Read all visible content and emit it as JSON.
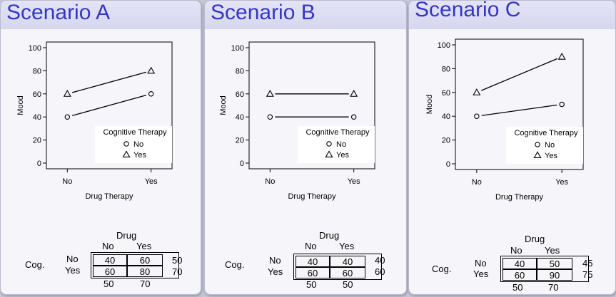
{
  "colors": {
    "title": "#3436c4",
    "header": "#dcdcf2",
    "panel": "#f6f6fa"
  },
  "panels": [
    {
      "title": "Scenario A",
      "chart_data": {
        "type": "line",
        "categories": [
          "No",
          "Yes"
        ],
        "xlabel": "Drug Therapy",
        "ylabel": "Mood",
        "ylim": [
          0,
          100
        ],
        "yticks": [
          0,
          20,
          40,
          60,
          80,
          100
        ],
        "legend_title": "Cognitive Therapy",
        "series": [
          {
            "name": "No",
            "marker": "circle",
            "values": [
              40,
              60
            ]
          },
          {
            "name": "Yes",
            "marker": "triangle",
            "values": [
              60,
              80
            ]
          }
        ]
      },
      "table": {
        "col_header": "Drug",
        "col_labels": [
          "No",
          "Yes"
        ],
        "row_header": "Cog.",
        "row_labels": [
          "No",
          "Yes"
        ],
        "cells": [
          [
            "40",
            "60"
          ],
          [
            "60",
            "80"
          ]
        ],
        "row_means": [
          "50",
          "70"
        ],
        "col_means": [
          "50",
          "70"
        ]
      }
    },
    {
      "title": "Scenario B",
      "chart_data": {
        "type": "line",
        "categories": [
          "No",
          "Yes"
        ],
        "xlabel": "Drug Therapy",
        "ylabel": "Mood",
        "ylim": [
          0,
          100
        ],
        "yticks": [
          0,
          20,
          40,
          60,
          80,
          100
        ],
        "legend_title": "Cognitive Therapy",
        "series": [
          {
            "name": "No",
            "marker": "circle",
            "values": [
              40,
              40
            ]
          },
          {
            "name": "Yes",
            "marker": "triangle",
            "values": [
              60,
              60
            ]
          }
        ]
      },
      "table": {
        "col_header": "Drug",
        "col_labels": [
          "No",
          "Yes"
        ],
        "row_header": "Cog.",
        "row_labels": [
          "No",
          "Yes"
        ],
        "cells": [
          [
            "40",
            "40"
          ],
          [
            "60",
            "60"
          ]
        ],
        "row_means": [
          "40",
          "60"
        ],
        "col_means": [
          "50",
          "50"
        ]
      }
    },
    {
      "title": "Scenario C",
      "chart_data": {
        "type": "line",
        "categories": [
          "No",
          "Yes"
        ],
        "xlabel": "Drug Therapy",
        "ylabel": "Mood",
        "ylim": [
          0,
          100
        ],
        "yticks": [
          0,
          20,
          40,
          60,
          80,
          100
        ],
        "legend_title": "Cognitive Therapy",
        "series": [
          {
            "name": "No",
            "marker": "circle",
            "values": [
              40,
              50
            ]
          },
          {
            "name": "Yes",
            "marker": "triangle",
            "values": [
              60,
              90
            ]
          }
        ]
      },
      "table": {
        "col_header": "Drug",
        "col_labels": [
          "No",
          "Yes"
        ],
        "row_header": "Cog.",
        "row_labels": [
          "No",
          "Yes"
        ],
        "cells": [
          [
            "40",
            "50"
          ],
          [
            "60",
            "90"
          ]
        ],
        "row_means": [
          "45",
          "75"
        ],
        "col_means": [
          "50",
          "70"
        ]
      }
    }
  ]
}
